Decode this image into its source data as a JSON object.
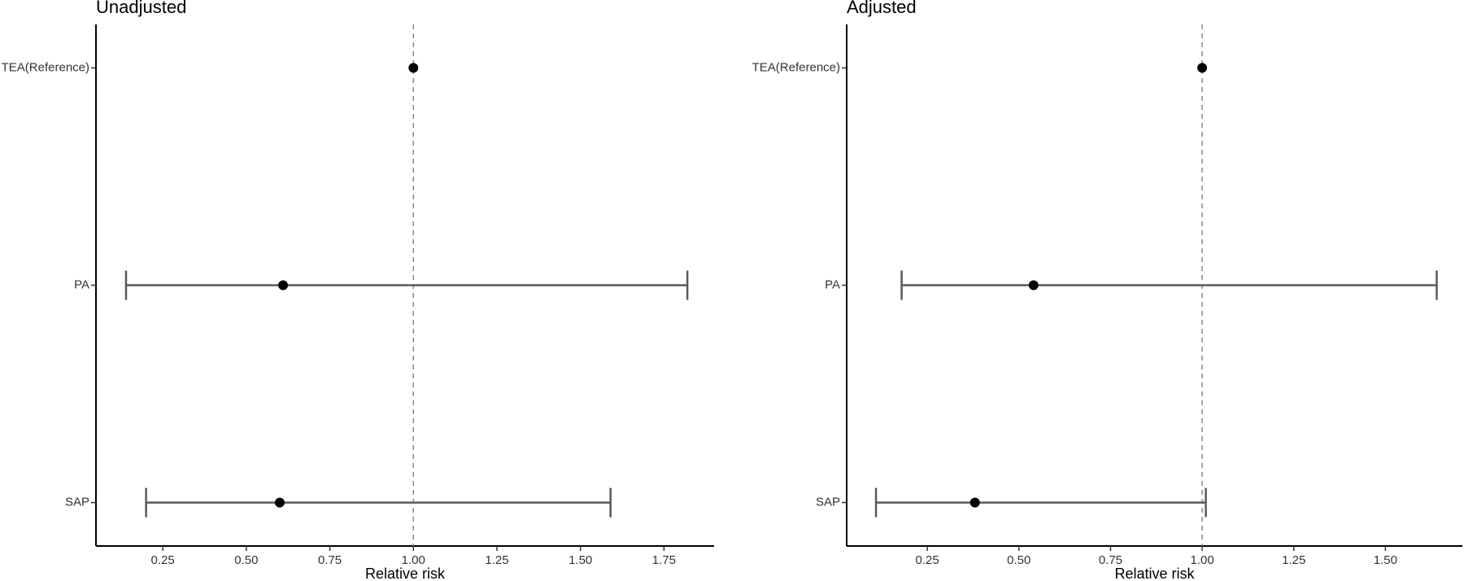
{
  "chart_data": [
    {
      "type": "forest",
      "title": "Unadjusted",
      "xlabel": "Relative risk",
      "categories": [
        "TEA(Reference)",
        "PA",
        "SAP"
      ],
      "values": [
        1.0,
        0.61,
        0.6
      ],
      "low": [
        null,
        0.14,
        0.2
      ],
      "high": [
        null,
        1.82,
        1.59
      ],
      "color": "#000000",
      "bar_color": "#595959",
      "xlim": [
        0.05,
        1.9
      ],
      "xticks": [
        {
          "value": 0.25,
          "label": "0.25"
        },
        {
          "value": 0.5,
          "label": "0.50"
        },
        {
          "value": 0.75,
          "label": "0.75"
        },
        {
          "value": 1.0,
          "label": "1.00"
        },
        {
          "value": 1.25,
          "label": "1.25"
        },
        {
          "value": 1.5,
          "label": "1.50"
        },
        {
          "value": 1.75,
          "label": "1.75"
        }
      ],
      "ref_line": 1
    },
    {
      "type": "forest",
      "title": "Adjusted",
      "xlabel": "Relative risk",
      "categories": [
        "TEA(Reference)",
        "PA",
        "SAP"
      ],
      "values": [
        1.0,
        0.54,
        0.38
      ],
      "low": [
        null,
        0.18,
        0.11
      ],
      "high": [
        null,
        1.64,
        1.01
      ],
      "color": "#000000",
      "bar_color": "#595959",
      "xlim": [
        0.03,
        1.71
      ],
      "xticks": [
        {
          "value": 0.25,
          "label": "0.25"
        },
        {
          "value": 0.5,
          "label": "0.50"
        },
        {
          "value": 0.75,
          "label": "0.75"
        },
        {
          "value": 1.0,
          "label": "1.00"
        },
        {
          "value": 1.25,
          "label": "1.25"
        },
        {
          "value": 1.5,
          "label": "1.50"
        }
      ],
      "ref_line": 1
    }
  ]
}
